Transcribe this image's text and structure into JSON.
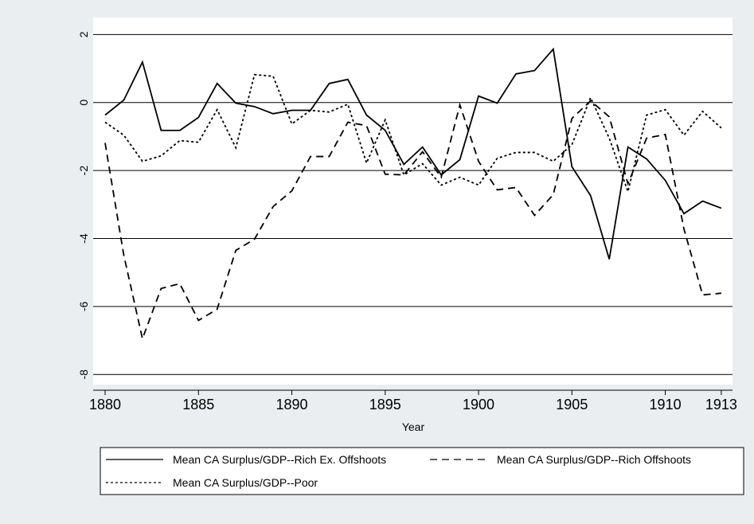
{
  "chart_data": {
    "type": "line",
    "x_label": "Year",
    "x": [
      1880,
      1881,
      1882,
      1883,
      1884,
      1885,
      1886,
      1887,
      1888,
      1889,
      1890,
      1891,
      1892,
      1893,
      1894,
      1895,
      1896,
      1897,
      1898,
      1899,
      1900,
      1901,
      1902,
      1903,
      1904,
      1905,
      1906,
      1907,
      1908,
      1909,
      1910,
      1911,
      1912,
      1913
    ],
    "xlim": [
      1879.36,
      1913.6
    ],
    "xticks": [
      1880,
      1885,
      1890,
      1895,
      1900,
      1905,
      1910,
      1913
    ],
    "ylim": [
      -8.3,
      2.5
    ],
    "yticks": [
      2,
      0,
      -2,
      -4,
      -6,
      -8
    ],
    "grid": true,
    "legend": "bottom",
    "series": [
      {
        "name": "Mean CA Surplus/GDP--Rich Ex. Offshoots",
        "color": "#000000",
        "dash": "solid",
        "values": [
          -0.37,
          0.07,
          1.19,
          -0.82,
          -0.82,
          -0.44,
          0.56,
          -0.02,
          -0.12,
          -0.33,
          -0.23,
          -0.23,
          0.56,
          0.68,
          -0.37,
          -0.82,
          -1.82,
          -1.31,
          -2.13,
          -1.68,
          0.19,
          -0.02,
          0.84,
          0.94,
          1.57,
          -1.89,
          -2.74,
          -4.61,
          -1.31,
          -1.66,
          -2.29,
          -3.27,
          -2.9,
          -3.11
        ]
      },
      {
        "name": "Mean CA Surplus/GDP--Rich Offshoots",
        "color": "#000000",
        "dash": "dashed",
        "values": [
          -1.19,
          -4.49,
          -6.95,
          -5.47,
          -5.33,
          -6.41,
          -6.08,
          -4.35,
          -4.02,
          -3.06,
          -2.6,
          -1.59,
          -1.59,
          -0.58,
          -0.68,
          -2.11,
          -2.13,
          -1.45,
          -2.2,
          -0.07,
          -1.73,
          -2.57,
          -2.5,
          -3.32,
          -2.71,
          -0.47,
          0.05,
          -0.42,
          -2.39,
          -1.05,
          -0.94,
          -3.72,
          -5.66,
          -5.61
        ]
      },
      {
        "name": "Mean CA Surplus/GDP--Poor",
        "color": "#000000",
        "dash": "dotted",
        "values": [
          -0.58,
          -0.96,
          -1.73,
          -1.57,
          -1.12,
          -1.17,
          -0.21,
          -1.33,
          0.82,
          0.77,
          -0.63,
          -0.23,
          -0.28,
          -0.05,
          -1.78,
          -0.51,
          -2.13,
          -1.8,
          -2.43,
          -2.2,
          -2.43,
          -1.64,
          -1.47,
          -1.47,
          -1.73,
          -1.24,
          0.14,
          -1.05,
          -2.62,
          -0.37,
          -0.21,
          -0.96,
          -0.26,
          -0.75
        ]
      }
    ]
  }
}
